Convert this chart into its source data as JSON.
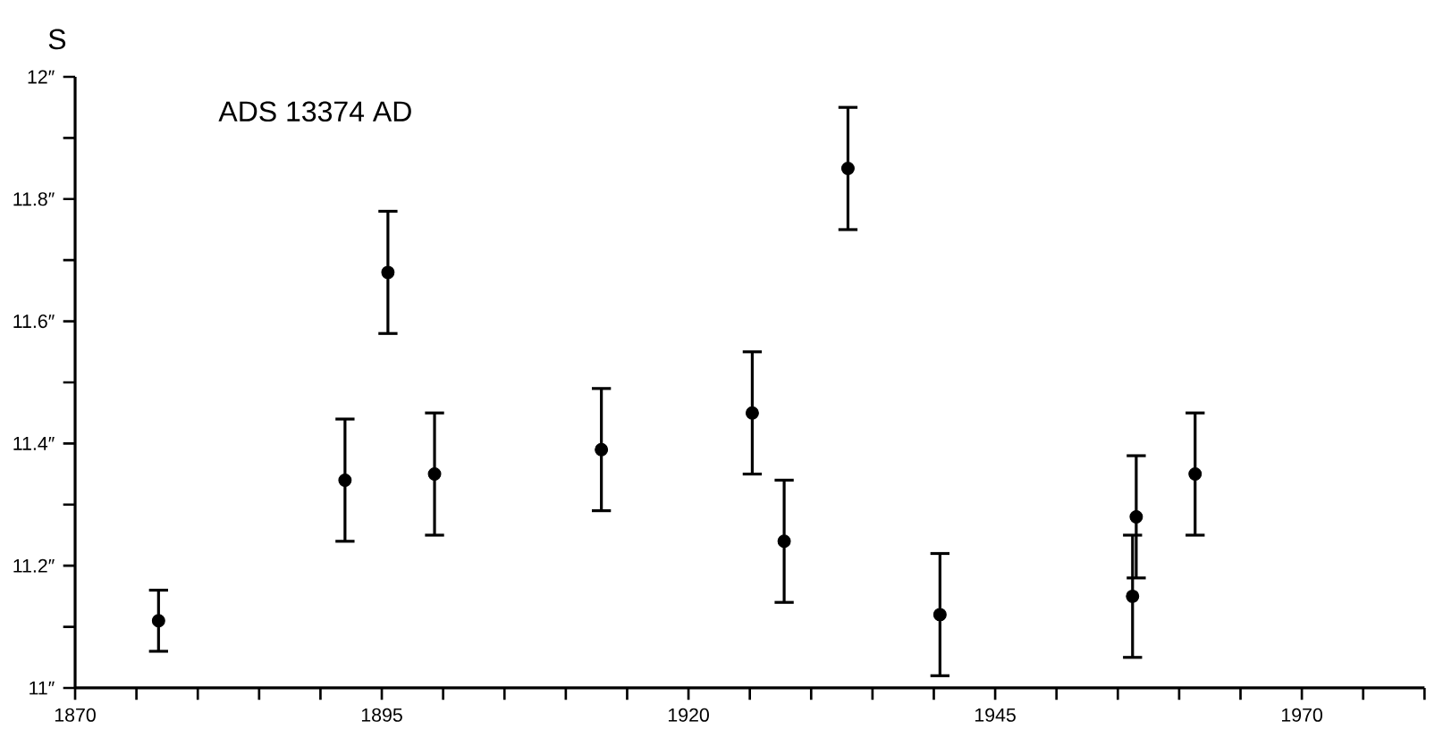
{
  "chart_data": {
    "type": "scatter",
    "title": "ADS 13374 AD",
    "ylabel": "S",
    "x": [
      1876.8,
      1892.0,
      1895.5,
      1899.3,
      1912.9,
      1925.2,
      1927.8,
      1933.0,
      1940.5,
      1956.2,
      1956.5,
      1961.3
    ],
    "values": [
      11.11,
      11.34,
      11.68,
      11.35,
      11.39,
      11.45,
      11.24,
      11.85,
      11.12,
      11.15,
      11.28,
      11.35
    ],
    "errors": [
      0.05,
      0.1,
      0.1,
      0.1,
      0.1,
      0.1,
      0.1,
      0.1,
      0.1,
      0.1,
      0.1,
      0.1
    ],
    "color": "#000000",
    "marker": "circle",
    "xlim": [
      1870,
      1980
    ],
    "ylim": [
      11,
      12
    ],
    "xticks": [
      1870,
      {
        "value": 1875,
        "label": null
      },
      {
        "value": 1880,
        "label": null
      },
      {
        "value": 1885,
        "label": null
      },
      {
        "value": 1890,
        "label": null
      },
      1895,
      {
        "value": 1900,
        "label": null
      },
      {
        "value": 1905,
        "label": null
      },
      {
        "value": 1910,
        "label": null
      },
      {
        "value": 1915,
        "label": null
      },
      1920,
      {
        "value": 1925,
        "label": null
      },
      {
        "value": 1930,
        "label": null
      },
      {
        "value": 1935,
        "label": null
      },
      {
        "value": 1940,
        "label": null
      },
      1945,
      {
        "value": 1950,
        "label": null
      },
      {
        "value": 1955,
        "label": null
      },
      {
        "value": 1960,
        "label": null
      },
      {
        "value": 1965,
        "label": null
      },
      1970,
      {
        "value": 1975,
        "label": null
      },
      {
        "value": 1980,
        "label": null
      }
    ],
    "yticks": [
      {
        "value": 11,
        "label": "11″"
      },
      {
        "value": 11.1,
        "label": null
      },
      {
        "value": 11.2,
        "label": "11.2″"
      },
      {
        "value": 11.3,
        "label": null
      },
      {
        "value": 11.4,
        "label": "11.4″"
      },
      {
        "value": 11.5,
        "label": null
      },
      {
        "value": 11.6,
        "label": "11.6″"
      },
      {
        "value": 11.7,
        "label": null
      },
      {
        "value": 11.8,
        "label": "11.8″"
      },
      {
        "value": 11.9,
        "label": null
      },
      {
        "value": 12,
        "label": "12″"
      }
    ]
  }
}
